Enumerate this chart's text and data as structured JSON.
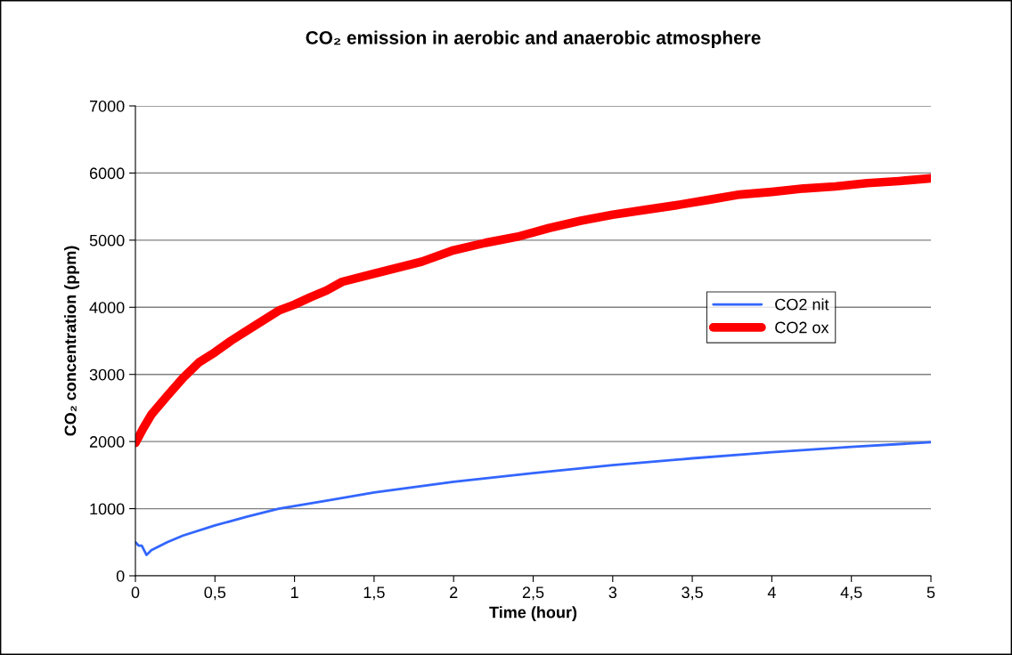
{
  "chart_data": {
    "type": "line",
    "title": "CO₂ emission in aerobic and anaerobic atmosphere",
    "xlabel": "Time (hour)",
    "ylabel": "CO₂ concentration (ppm)",
    "xlim": [
      0,
      5
    ],
    "xticks": [
      0,
      {
        "value": 0.5,
        "label": "0,5"
      },
      1,
      {
        "value": 1.5,
        "label": "1,5"
      },
      2,
      {
        "value": 2.5,
        "label": "2,5"
      },
      3,
      {
        "value": 3.5,
        "label": "3,5"
      },
      4,
      {
        "value": 4.5,
        "label": "4,5"
      },
      5
    ],
    "ylim": [
      0,
      7000
    ],
    "yticks": [
      0,
      1000,
      2000,
      3000,
      4000,
      5000,
      6000,
      7000
    ],
    "grid": "y",
    "legend": "right",
    "marker": "none",
    "line_style": "solid",
    "series": [
      {
        "name": "CO2 nit",
        "color": "#3366ff",
        "x": [
          0,
          0.02,
          0.04,
          0.07,
          0.1,
          0.2,
          0.3,
          0.5,
          0.7,
          0.9,
          1.0,
          1.2,
          1.5,
          2.0,
          2.5,
          3.0,
          3.5,
          4.0,
          4.5,
          5.0
        ],
        "values": [
          500,
          450,
          450,
          310,
          380,
          500,
          600,
          750,
          880,
          1000,
          1040,
          1120,
          1240,
          1400,
          1530,
          1650,
          1750,
          1840,
          1920,
          1990
        ]
      },
      {
        "name": "CO2 ox",
        "color": "#ff0000",
        "x": [
          0,
          0.05,
          0.1,
          0.2,
          0.3,
          0.4,
          0.5,
          0.6,
          0.7,
          0.8,
          0.9,
          1.0,
          1.1,
          1.2,
          1.3,
          1.5,
          1.7,
          1.8,
          2.0,
          2.2,
          2.4,
          2.6,
          2.8,
          3.0,
          3.2,
          3.4,
          3.6,
          3.8,
          4.0,
          4.2,
          4.4,
          4.6,
          4.8,
          5.0
        ],
        "values": [
          1980,
          2200,
          2400,
          2680,
          2950,
          3180,
          3330,
          3500,
          3650,
          3800,
          3950,
          4040,
          4150,
          4250,
          4380,
          4500,
          4620,
          4680,
          4850,
          4960,
          5050,
          5180,
          5290,
          5380,
          5450,
          5520,
          5600,
          5680,
          5720,
          5770,
          5800,
          5850,
          5880,
          5920
        ]
      }
    ]
  }
}
